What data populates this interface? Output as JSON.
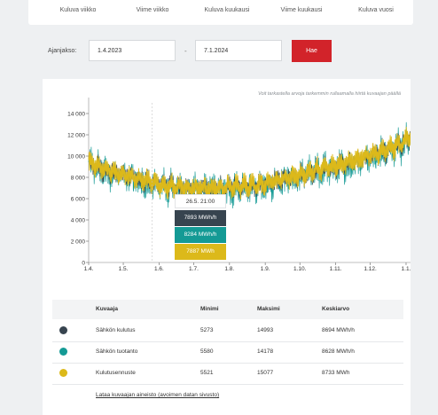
{
  "tabs": [
    "Kuluva viikko",
    "Viime viikko",
    "Kuluva kuukausi",
    "Viime kuukausi",
    "Kuluva vuosi"
  ],
  "period": {
    "label": "Ajanjakso:",
    "start": "1.4.2023",
    "separator": "-",
    "end": "7.1.2024",
    "search_label": "Hae"
  },
  "hint": "Voit tarkastella arvoja tarkemmin rullaamalla hiirtä kuvaajan päällä",
  "colors": {
    "consumption": "#37444f",
    "production": "#149a95",
    "forecast": "#dcb91a",
    "accent": "#d2232a"
  },
  "tooltip": {
    "time": "26.5. 21:00",
    "consumption": "7893 MWh/h",
    "production": "8284 MWh/h",
    "forecast": "7887 MWh"
  },
  "chart_data": {
    "type": "line",
    "x_ticks": [
      "1.4.",
      "1.5.",
      "1.6.",
      "1.7.",
      "1.8.",
      "1.9.",
      "1.10.",
      "1.11.",
      "1.12.",
      "1.1."
    ],
    "y_tick_labels": [
      "14 000",
      "12 000",
      "10 000",
      "8 000",
      "6 000",
      "4 000",
      "2 000",
      "0"
    ],
    "y_ticks": [
      14000,
      12000,
      10000,
      8000,
      6000,
      4000,
      2000,
      0
    ],
    "ylim": [
      0,
      15000
    ],
    "xlim_days": [
      0,
      285
    ],
    "series": [
      {
        "name": "Sähkön kulutus",
        "color": "#37444f",
        "min": 5273,
        "max": 14993,
        "mean": 8694
      },
      {
        "name": "Sähkön tuotanto",
        "color": "#149a95",
        "min": 5580,
        "max": 14178,
        "mean": 8628
      },
      {
        "name": "Kulutusennuste",
        "color": "#dcb91a",
        "min": 5521,
        "max": 15077,
        "mean": 8733
      }
    ],
    "trend": {
      "days": [
        0,
        15,
        30,
        45,
        61,
        75,
        91,
        105,
        122,
        135,
        153,
        165,
        183,
        195,
        214,
        228,
        244,
        258,
        270,
        278,
        282,
        285
      ],
      "values": [
        9300,
        8600,
        8200,
        7700,
        7300,
        7000,
        6900,
        6900,
        7000,
        7100,
        7300,
        7700,
        8100,
        8500,
        9000,
        9400,
        10000,
        10500,
        11000,
        11800,
        13000,
        12800
      ]
    }
  },
  "table": {
    "headers": [
      "Kuvaaja",
      "Minimi",
      "Maksimi",
      "Keskiarvo"
    ],
    "rows": [
      {
        "name": "Sähkön kulutus",
        "min": "5273",
        "max": "14993",
        "avg": "8694 MWh/h",
        "color": "#37444f"
      },
      {
        "name": "Sähkön tuotanto",
        "min": "5580",
        "max": "14178",
        "avg": "8628 MWh/h",
        "color": "#149a95"
      },
      {
        "name": "Kulutusennuste",
        "min": "5521",
        "max": "15077",
        "avg": "8733 MWh",
        "color": "#dcb91a"
      }
    ]
  },
  "data_link": "Lataa kuvaajan aineisto (avoimen datan sivusto)"
}
